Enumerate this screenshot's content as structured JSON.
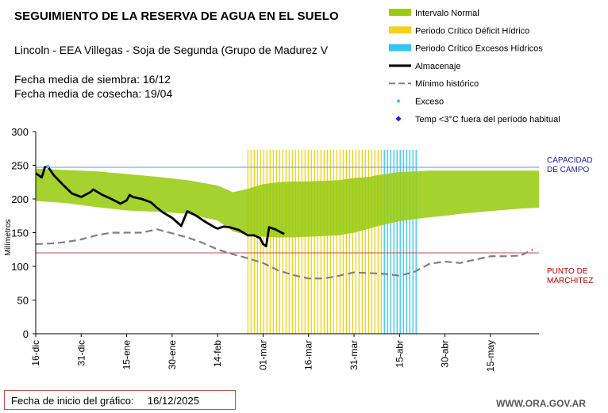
{
  "header": {
    "title": "SEGUIMIENTO DE LA RESERVA DE AGUA EN EL SUELO",
    "subtitle": "Lincoln - EEA Villegas - Soja de Segunda (Grupo de Madurez V",
    "sowing": "Fecha media de siembra: 16/12",
    "harvest": "Fecha media de cosecha: 19/04"
  },
  "footer": {
    "start_label": "Fecha de inicio del gráfico:",
    "start_date": "16/12/2025",
    "website": "WWW.ORA.GOV.AR"
  },
  "colors": {
    "normal": "#99cc11",
    "deficit": "#f2d21a",
    "excess": "#33c6f0",
    "storage": "#000000",
    "min": "#808080",
    "capacity_line": "#5b9bd5",
    "wilting_line": "#c0504d",
    "excess_dot": "#33c6f0",
    "temp_dot": "#1f1fd8"
  },
  "chart_data": {
    "type": "area",
    "title": "SEGUIMIENTO DE LA RESERVA DE AGUA EN EL SUELO",
    "ylabel": "Milímetros",
    "xlabel": "",
    "ylim": [
      0,
      300
    ],
    "yticks": [
      0,
      50,
      100,
      150,
      200,
      250,
      300
    ],
    "xlim_days": [
      0,
      166
    ],
    "xticks": [
      {
        "day": 0,
        "label": "16-dic"
      },
      {
        "day": 15,
        "label": "31-dic"
      },
      {
        "day": 30,
        "label": "15-ene"
      },
      {
        "day": 45,
        "label": "30-ene"
      },
      {
        "day": 60,
        "label": "14-feb"
      },
      {
        "day": 75,
        "label": "01-mar"
      },
      {
        "day": 90,
        "label": "16-mar"
      },
      {
        "day": 105,
        "label": "31-mar"
      },
      {
        "day": 120,
        "label": "15-abr"
      },
      {
        "day": 135,
        "label": "30-abr"
      },
      {
        "day": 150,
        "label": "15-may"
      }
    ],
    "legend": [
      {
        "key": "normal",
        "label": "Intervalo Normal",
        "kind": "band"
      },
      {
        "key": "deficit",
        "label": "Periodo Crítico Déficit Hídrico",
        "kind": "band"
      },
      {
        "key": "excess",
        "label": "Periodo Crítico Excesos Hídricos",
        "kind": "band"
      },
      {
        "key": "storage",
        "label": "Almacenaje",
        "kind": "line"
      },
      {
        "key": "min",
        "label": "Mínimo histórico",
        "kind": "dash"
      },
      {
        "key": "excess_dot",
        "label": "Exceso",
        "kind": "dot"
      },
      {
        "key": "temp_dot",
        "label": "Temp <3°C fuera del período habitual",
        "kind": "diamond"
      }
    ],
    "reference_lines": [
      {
        "name": "CAPACIDAD DE CAMPO",
        "value": 247,
        "label_lines": [
          "CAPACIDAD",
          "DE  CAMPO"
        ],
        "color_key": "capacity_line"
      },
      {
        "name": "PUNTO DE MARCHITEZ",
        "value": 120,
        "label_lines": [
          "PUNTO  DE",
          "MARCHITEZ"
        ],
        "color_key": "wilting_line"
      }
    ],
    "normal_interval": {
      "days": [
        0,
        10,
        20,
        30,
        40,
        50,
        60,
        65,
        70,
        75,
        80,
        85,
        90,
        95,
        100,
        105,
        110,
        115,
        120,
        125,
        130,
        135,
        140,
        145,
        150,
        155,
        161,
        166
      ],
      "upper": [
        245,
        243,
        241,
        237,
        233,
        228,
        220,
        210,
        215,
        222,
        225,
        226,
        226,
        227,
        228,
        231,
        233,
        237,
        240,
        241,
        242,
        242,
        242,
        242,
        242,
        242,
        242,
        242
      ],
      "lower": [
        197,
        194,
        188,
        183,
        181,
        178,
        168,
        152,
        146,
        144,
        143,
        143,
        144,
        145,
        146,
        150,
        156,
        162,
        167,
        170,
        173,
        175,
        178,
        180,
        182,
        184,
        186,
        187
      ]
    },
    "storage": {
      "days": [
        0,
        2,
        3,
        4,
        6,
        9,
        12,
        15,
        18,
        19,
        22,
        25,
        28,
        30,
        31,
        32,
        35,
        38,
        40,
        42,
        45,
        47,
        48,
        50,
        53,
        56,
        59,
        60,
        62,
        64,
        67,
        70,
        72,
        74,
        75,
        76,
        77,
        79,
        82
      ],
      "values": [
        238,
        232,
        247,
        248,
        235,
        221,
        208,
        203,
        210,
        214,
        206,
        200,
        193,
        198,
        206,
        203,
        200,
        195,
        187,
        180,
        172,
        164,
        160,
        182,
        175,
        166,
        158,
        156,
        159,
        158,
        154,
        146,
        146,
        142,
        133,
        130,
        158,
        155,
        148
      ]
    },
    "min_historic": {
      "days": [
        0,
        5,
        10,
        15,
        20,
        25,
        30,
        35,
        40,
        45,
        50,
        55,
        60,
        65,
        70,
        75,
        80,
        85,
        90,
        95,
        100,
        105,
        110,
        115,
        120,
        125,
        130,
        135,
        140,
        145,
        150,
        155,
        160,
        164
      ],
      "values": [
        133,
        134,
        136,
        140,
        146,
        150,
        150,
        150,
        155,
        149,
        143,
        135,
        125,
        118,
        112,
        105,
        94,
        87,
        82,
        82,
        86,
        91,
        90,
        89,
        86,
        92,
        104,
        107,
        105,
        110,
        115,
        115,
        116,
        125
      ]
    },
    "deficit_period_days": [
      70,
      115
    ],
    "excess_period_days": [
      115,
      126
    ],
    "excess_points": [
      {
        "day": 4,
        "value": 248
      }
    ]
  }
}
